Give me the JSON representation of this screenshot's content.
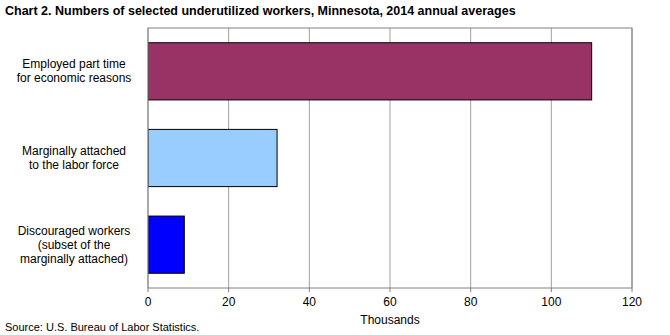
{
  "chart_data": {
    "type": "bar",
    "orientation": "horizontal",
    "title": "Chart 2. Numbers of selected underutilized workers, Minnesota, 2014 annual averages",
    "categories": [
      "Employed part time\nfor economic reasons",
      "Marginally attached\nto the labor force",
      "Discouraged workers\n(subset of the\nmarginally attached)"
    ],
    "values": [
      110,
      32,
      9
    ],
    "colors": [
      "#993366",
      "#99ccff",
      "#0000ff"
    ],
    "xlabel": "Thousands",
    "xlim": [
      0,
      120
    ],
    "xticks": [
      0,
      20,
      40,
      60,
      80,
      100,
      120
    ],
    "grid": true,
    "source": "Source: U.S. Bureau of Labor Statistics."
  }
}
